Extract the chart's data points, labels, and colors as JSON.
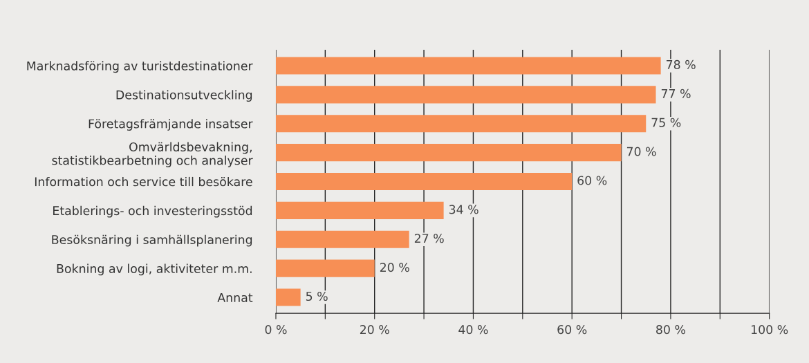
{
  "chart_data": {
    "type": "bar",
    "orientation": "horizontal",
    "categories": [
      "Marknadsföring av turistdestinationer",
      "Destinationsutveckling",
      "Företagsfrämjande insatser",
      "Omvärldsbevakning,\nstatistikbearbetning och analyser",
      "Information och service till besökare",
      "Etablerings- och investeringsstöd",
      "Besöksnäring i samhällsplanering",
      "Bokning av logi, aktiviteter m.m.",
      "Annat"
    ],
    "values": [
      78,
      77,
      75,
      70,
      60,
      34,
      27,
      20,
      5
    ],
    "value_labels": [
      "78 %",
      "77 %",
      "75 %",
      "70 %",
      "60 %",
      "34 %",
      "27 %",
      "20 %",
      "5 %"
    ],
    "color": "#f78f55",
    "xlim": [
      0,
      100
    ],
    "xticks": [
      {
        "value": 0,
        "label": "0 %"
      },
      {
        "value": 10,
        "label": null
      },
      {
        "value": 20,
        "label": "20 %"
      },
      {
        "value": 30,
        "label": null
      },
      {
        "value": 40,
        "label": "40 %"
      },
      {
        "value": 50,
        "label": null
      },
      {
        "value": 60,
        "label": "60 %"
      },
      {
        "value": 70,
        "label": null
      },
      {
        "value": 80,
        "label": "80 %"
      },
      {
        "value": 90,
        "label": null
      },
      {
        "value": 100,
        "label": "100 %"
      }
    ],
    "grid": "x",
    "legend": false
  }
}
